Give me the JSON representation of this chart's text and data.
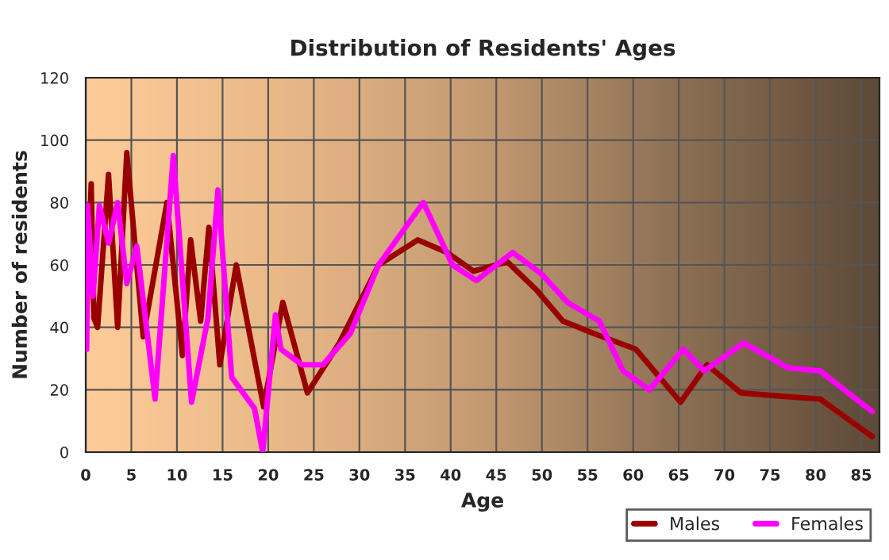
{
  "chart_data": {
    "type": "line",
    "title": "Distribution of Residents' Ages",
    "xlabel": "Age",
    "ylabel": "Number of residents",
    "xlim": [
      0,
      87
    ],
    "xticks": [
      0,
      5,
      10,
      15,
      20,
      25,
      30,
      35,
      40,
      45,
      50,
      55,
      60,
      65,
      70,
      75,
      80,
      85
    ],
    "ylim": [
      0,
      120
    ],
    "yticks": [
      0,
      20,
      40,
      60,
      80,
      100,
      120
    ],
    "grid": true,
    "legend": "bottom right",
    "series": [
      {
        "name": "Males",
        "color": "#990000",
        "x": [
          0.1,
          0.6,
          0.9,
          1.3,
          2.5,
          3.5,
          4.5,
          6.3,
          8.9,
          10.6,
          11.5,
          12.6,
          13.5,
          14.7,
          16.5,
          19.5,
          21.6,
          24.3,
          27.8,
          32.1,
          36.4,
          39.6,
          42.5,
          46.2,
          49.4,
          52.3,
          55.7,
          60.3,
          65.2,
          68.1,
          71.8,
          75.9,
          80.5,
          86.2
        ],
        "values": [
          43,
          86,
          43,
          40,
          89,
          40,
          96,
          37,
          80,
          31,
          68,
          42,
          72,
          28,
          60,
          14.5,
          48,
          19,
          35,
          60,
          68,
          64,
          58,
          61,
          52,
          42,
          38,
          33,
          16,
          28,
          19,
          18,
          17,
          5
        ]
      },
      {
        "name": "Females",
        "color": "#ff00ff",
        "x": [
          0.1,
          0.2,
          0.8,
          1.5,
          2.5,
          3.5,
          4.5,
          5.6,
          7.6,
          9.6,
          11.6,
          13.4,
          14.5,
          16,
          18.5,
          19.4,
          20.8,
          21.4,
          23.7,
          26,
          29,
          32.1,
          37,
          40.2,
          42.8,
          46.8,
          50,
          52.8,
          56.3,
          58.9,
          61.8,
          65.5,
          67.8,
          72.1,
          77,
          80.5,
          86.2
        ],
        "values": [
          33,
          79,
          50,
          79,
          67,
          80,
          54,
          66,
          17,
          95,
          16,
          43,
          84,
          24,
          14,
          0,
          44,
          33,
          28,
          28,
          38,
          60,
          80,
          60,
          55,
          64,
          57,
          48,
          42,
          26,
          20,
          33,
          26,
          35,
          27,
          26,
          13
        ]
      }
    ]
  }
}
